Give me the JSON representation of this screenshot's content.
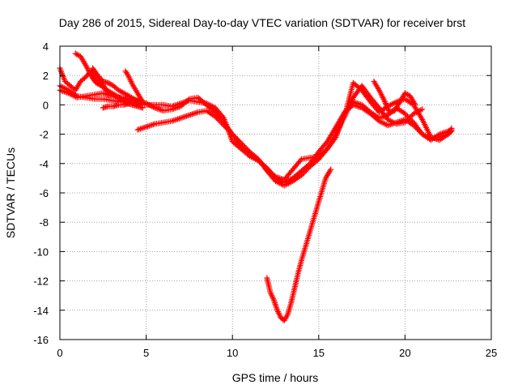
{
  "chart_data": {
    "type": "scatter",
    "title": "Day 286 of 2015, Sidereal Day-to-day VTEC variation (SDTVAR) for receiver brst",
    "xlabel": "GPS time / hours",
    "ylabel": "SDTVAR / TECUs",
    "xlim": [
      0,
      25
    ],
    "ylim": [
      -16,
      4
    ],
    "xticks": [
      "0",
      "5",
      "10",
      "15",
      "20",
      "25"
    ],
    "yticks": [
      "4",
      "2",
      "0",
      "-2",
      "-4",
      "-6",
      "-8",
      "-10",
      "-12",
      "-14",
      "-16"
    ],
    "grid": true,
    "marker": "plus",
    "color": "#ff0000",
    "series": [
      {
        "x": [
          0,
          0.5,
          1,
          1.5,
          2,
          2.5,
          3,
          3.5,
          4,
          4.5,
          5,
          5.5,
          6,
          6.5,
          7,
          7.5,
          8,
          8.5,
          9,
          9.5,
          10,
          10.5,
          11,
          11.5,
          12,
          12.5,
          13,
          13.5,
          14,
          14.5,
          15,
          15.5,
          16,
          16.5,
          17,
          17.5,
          18,
          18.5,
          19,
          19.5,
          20,
          20.5,
          21,
          21.5,
          22,
          22.5,
          22.7
        ],
        "y": [
          1.3,
          1.0,
          0.6,
          0.5,
          0.4,
          0.4,
          0.3,
          0.2,
          0.2,
          0.1,
          0.0,
          0.0,
          0.0,
          -0.1,
          0.1,
          0.3,
          0.2,
          0.1,
          -0.2,
          -0.9,
          -2.5,
          -3.0,
          -3.5,
          -3.8,
          -4.3,
          -5.0,
          -5.3,
          -5.0,
          -4.5,
          -4.0,
          -3.2,
          -2.5,
          -1.5,
          -0.5,
          0.2,
          0.0,
          -0.5,
          -0.9,
          -0.7,
          -0.2,
          -0.6,
          -1.2,
          -2.0,
          -2.4,
          -2.0,
          -1.8,
          -1.7
        ]
      },
      {
        "x": [
          0,
          0.5,
          1,
          1.5,
          2,
          2.5,
          3,
          3.5,
          4,
          4.5,
          5,
          5.5,
          6,
          6.5,
          7,
          7.5,
          8,
          8.5,
          9,
          9.5,
          10,
          10.5,
          11,
          11.5,
          12,
          12.5,
          13,
          13.5,
          14,
          14.5,
          15,
          15.5,
          16,
          16.5,
          17,
          17.5,
          18,
          18.5,
          19,
          19.5,
          20,
          20.5,
          21,
          21.5,
          22,
          22.5,
          22.7
        ],
        "y": [
          1.0,
          0.8,
          0.5,
          0.6,
          0.7,
          0.8,
          0.6,
          0.5,
          0.4,
          0.3,
          0.1,
          -0.2,
          -0.4,
          -0.3,
          -0.1,
          0.4,
          0.5,
          0.0,
          -0.5,
          -1.2,
          -2.0,
          -2.6,
          -3.2,
          -3.7,
          -4.5,
          -5.2,
          -5.5,
          -5.2,
          -4.8,
          -4.2,
          -3.7,
          -3.0,
          -2.0,
          -0.8,
          1.5,
          1.0,
          0.2,
          -0.5,
          -0.1,
          0.2,
          0.4,
          0.0,
          -1.0,
          -2.2,
          -2.4,
          -2.0,
          -1.6
        ]
      },
      {
        "x": [
          4.5,
          5,
          5.5,
          6,
          6.5,
          7,
          7.5,
          8,
          8.5,
          9,
          9.5,
          10,
          10.5,
          11,
          11.5,
          12,
          12.5,
          13,
          13.5,
          14,
          14.5,
          15,
          15.5,
          16,
          16.5,
          17,
          17.5,
          18,
          18.5,
          19,
          19.5,
          20,
          20.5,
          21,
          21.5,
          22,
          22.5,
          22.7
        ],
        "y": [
          -1.7,
          -1.5,
          -1.3,
          -1.2,
          -1.1,
          -0.9,
          -0.7,
          -0.5,
          -0.4,
          -0.8,
          -1.4,
          -2.0,
          -2.8,
          -3.3,
          -3.8,
          -4.4,
          -4.9,
          -5.1,
          -4.4,
          -3.7,
          -3.6,
          -3.5,
          -3.0,
          -2.2,
          -0.5,
          0.0,
          -0.2,
          -0.6,
          -1.1,
          -1.4,
          -1.2,
          -1.0,
          -1.4,
          -2.0,
          -2.3,
          -2.2,
          -2.0,
          -1.8
        ]
      },
      {
        "x": [
          0,
          0.3,
          0.6,
          0.9,
          1.2,
          1.5,
          1.8,
          2.1,
          2.4,
          2.7,
          3.0,
          3.3,
          3.6,
          3.9,
          4.2,
          4.5
        ],
        "y": [
          2.5,
          1.6,
          1.3,
          1.0,
          1.6,
          1.9,
          2.3,
          1.8,
          1.5,
          1.0,
          0.8,
          0.6,
          0.4,
          0.3,
          0.2,
          0.0
        ]
      },
      {
        "x": [
          0.9,
          1.2,
          1.5,
          1.8,
          2.1,
          2.4,
          2.7,
          3.0,
          3.3,
          3.6,
          3.9,
          4.2,
          4.5,
          4.8
        ],
        "y": [
          3.5,
          3.3,
          2.7,
          2.0,
          1.5,
          1.3,
          1.0,
          0.8,
          0.5,
          0.3,
          0.1,
          0.0,
          -0.1,
          -0.2
        ]
      },
      {
        "x": [
          1.9,
          2.2,
          2.5,
          2.8,
          3.1,
          3.4,
          3.7,
          4.0,
          4.3,
          4.6
        ],
        "y": [
          2.5,
          2.0,
          1.6,
          1.5,
          1.3,
          1.0,
          0.8,
          0.6,
          0.4,
          0.2
        ]
      },
      {
        "x": [
          3.8,
          4.0,
          4.2,
          4.4,
          4.6,
          4.8
        ],
        "y": [
          2.3,
          1.9,
          1.4,
          1.0,
          0.6,
          0.2
        ]
      },
      {
        "x": [
          2.5,
          2.8,
          3.1,
          3.4,
          3.7,
          4.0
        ],
        "y": [
          -0.2,
          -0.1,
          -0.1,
          0.0,
          0.0,
          0.1
        ]
      },
      {
        "x": [
          16.5,
          17,
          17.5,
          18,
          18.5,
          19,
          19.5,
          20,
          20.5,
          21
        ],
        "y": [
          -0.8,
          0.5,
          1.3,
          0.5,
          -0.2,
          -1.0,
          -1.3,
          -1.2,
          -0.6,
          -0.3
        ]
      },
      {
        "x": [
          18.2,
          18.5,
          18.8,
          19.1,
          19.4,
          19.7,
          20.0,
          20.3,
          20.6
        ],
        "y": [
          1.6,
          1.0,
          0.3,
          -0.5,
          -0.4,
          0.2,
          0.8,
          0.6,
          0.0
        ]
      },
      {
        "x": [
          12.0,
          12.2,
          12.4,
          12.6,
          12.8,
          13.0,
          13.2,
          13.4,
          13.6,
          13.8,
          14.0,
          14.2,
          14.4,
          14.6,
          14.8,
          15.0,
          15.2,
          15.4,
          15.6,
          15.7
        ],
        "y": [
          -11.8,
          -12.8,
          -13.3,
          -14.0,
          -14.5,
          -14.7,
          -14.3,
          -13.5,
          -12.5,
          -11.5,
          -10.6,
          -9.8,
          -9.0,
          -8.2,
          -7.4,
          -6.6,
          -5.8,
          -5.0,
          -4.6,
          -4.4
        ]
      }
    ]
  }
}
